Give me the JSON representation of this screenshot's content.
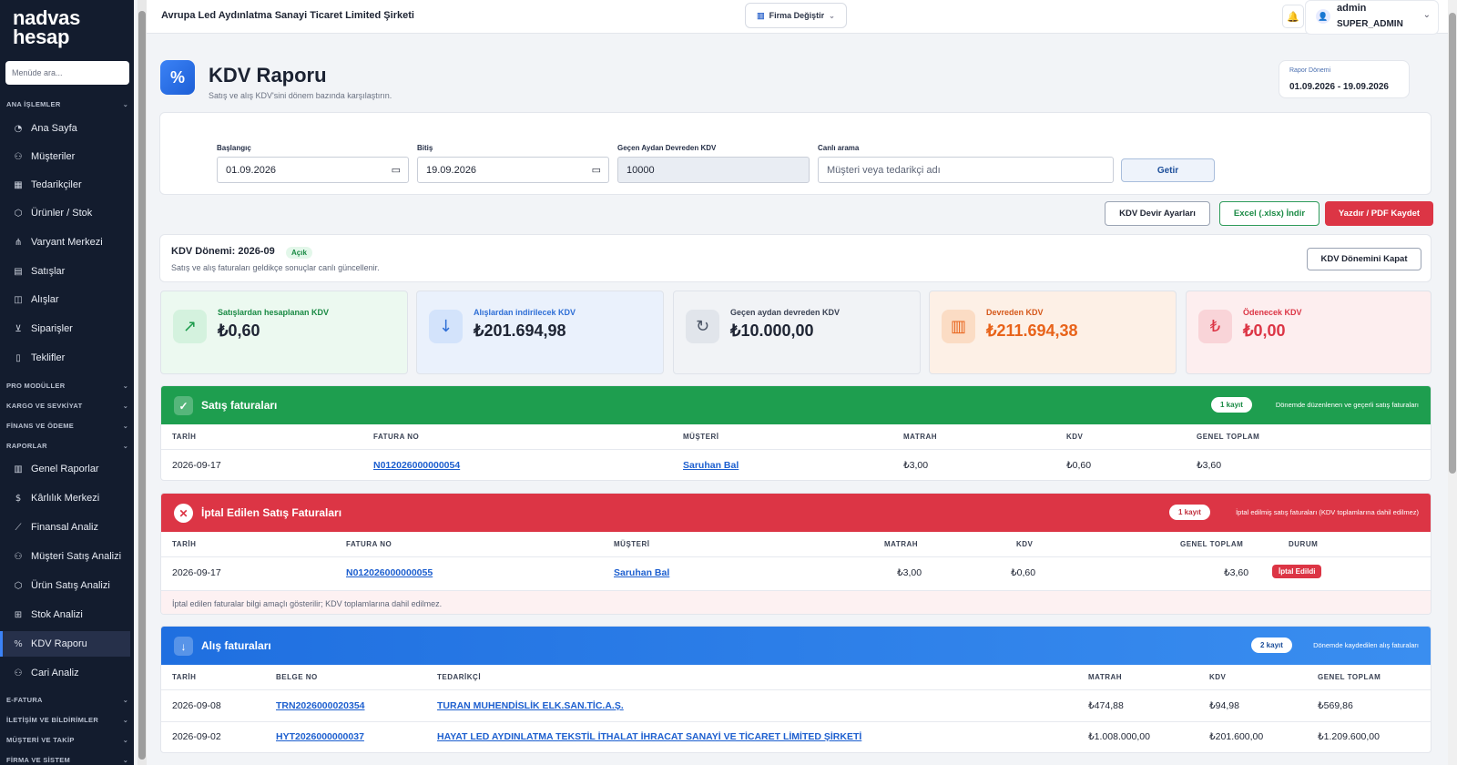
{
  "sidebar": {
    "logo_line1": "nadvas",
    "logo_line2": "hesap",
    "search_placeholder": "Menüde ara...",
    "groups": {
      "ana": "ANA İŞLEMLER",
      "pro": "PRO MODÜLLER",
      "kargo": "KARGO VE SEVKİYAT",
      "finans": "FİNANS VE ÖDEME",
      "raporlar": "RAPORLAR",
      "efatura": "E-FATURA",
      "iletisim": "İLETİŞİM VE BİLDİRİMLER",
      "musteri": "MÜŞTERİ VE TAKİP",
      "firma": "FİRMA VE SİSTEM"
    },
    "items": {
      "ana_sayfa": "Ana Sayfa",
      "musteriler": "Müşteriler",
      "tedarikciler": "Tedarikçiler",
      "urunler": "Ürünler / Stok",
      "varyant": "Varyant Merkezi",
      "satislar": "Satışlar",
      "alislar": "Alışlar",
      "siparisler": "Siparişler",
      "teklifler": "Teklifler",
      "genel_raporlar": "Genel Raporlar",
      "karlilik": "Kârlılık Merkezi",
      "finansal": "Finansal Analiz",
      "musteri_satis": "Müşteri Satış Analizi",
      "urun_satis": "Ürün Satış Analizi",
      "stok_analizi": "Stok Analizi",
      "kdv_raporu": "KDV Raporu",
      "cari_analiz": "Cari Analiz"
    }
  },
  "topbar": {
    "company": "Avrupa Led Aydınlatma Sanayi Ticaret Limited Şirketi",
    "firm_button": "Firma Değiştir",
    "user_name": "admin",
    "user_role": "SUPER_ADMIN"
  },
  "header": {
    "title": "KDV Raporu",
    "subtitle": "Satış ve alış KDV'sini dönem bazında karşılaştırın.",
    "period_label": "Rapor Dönemi",
    "period_value": "01.09.2026 - 19.09.2026"
  },
  "filter": {
    "start_label": "Başlangıç",
    "start_value": "01.09.2026",
    "end_label": "Bitiş",
    "end_value": "19.09.2026",
    "carry_label": "Geçen Aydan Devreden KDV",
    "carry_value": "10000",
    "search_label": "Canlı arama",
    "search_placeholder": "Müşteri veya tedarikçi adı",
    "submit": "Getir"
  },
  "actions": {
    "settings": "KDV Devir Ayarları",
    "excel": "Excel (.xlsx) İndir",
    "print": "Yazdır / PDF Kaydet"
  },
  "kdv_period": {
    "title": "KDV Dönemi: 2026-09",
    "status": "Açık",
    "note": "Satış ve alış faturaları geldikçe sonuçlar canlı güncellenir.",
    "close_button": "KDV Dönemini Kapat"
  },
  "stats": [
    {
      "label": "Satışlardan hesaplanan KDV",
      "value": "₺0,60",
      "icon": "trend-up-icon",
      "color": "#1a9a4a"
    },
    {
      "label": "Alışlardan indirilecek KDV",
      "value": "₺201.694,98",
      "icon": "arrow-down-icon",
      "color": "#2f6fd6"
    },
    {
      "label": "Geçen aydan devreden KDV",
      "value": "₺10.000,00",
      "icon": "refresh-icon",
      "color": "#4b5566"
    },
    {
      "label": "Devreden KDV",
      "value": "₺211.694,38",
      "icon": "barcode-icon",
      "color": "#e8631a"
    },
    {
      "label": "Ödenecek KDV",
      "value": "₺0,00",
      "icon": "lira-icon",
      "color": "#dc3545"
    }
  ],
  "sales": {
    "title": "Satış faturaları",
    "count": "1 kayıt",
    "note": "Dönemde düzenlenen ve geçerli satış faturaları",
    "headers": [
      "TARİH",
      "FATURA NO",
      "MÜŞTERİ",
      "MATRAH",
      "KDV",
      "GENEL TOPLAM"
    ],
    "rows": [
      {
        "date": "2026-09-17",
        "no": "N012026000000054",
        "party": "Saruhan Bal",
        "base": "₺3,00",
        "kdv": "₺0,60",
        "total": "₺3,60"
      }
    ]
  },
  "cancelled": {
    "title": "İptal Edilen Satış Faturaları",
    "count": "1 kayıt",
    "note": "İptal edilmiş satış faturaları (KDV toplamlarına dahil edilmez)",
    "headers": [
      "TARİH",
      "FATURA NO",
      "MÜŞTERİ",
      "MATRAH",
      "KDV",
      "GENEL TOPLAM",
      "DURUM"
    ],
    "rows": [
      {
        "date": "2026-09-17",
        "no": "N012026000000055",
        "party": "Saruhan Bal",
        "base": "₺3,00",
        "kdv": "₺0,60",
        "total": "₺3,60",
        "status": "İptal Edildi"
      }
    ],
    "footer": "İptal edilen faturalar bilgi amaçlı gösterilir; KDV toplamlarına dahil edilmez."
  },
  "purchases": {
    "title": "Alış faturaları",
    "count": "2 kayıt",
    "note": "Dönemde kaydedilen alış faturaları",
    "headers": [
      "TARİH",
      "BELGE NO",
      "TEDARİKÇİ",
      "MATRAH",
      "KDV",
      "GENEL TOPLAM"
    ],
    "rows": [
      {
        "date": "2026-09-08",
        "no": "TRN2026000020354",
        "party": "TURAN MUHENDİSLİK ELK.SAN.TİC.A.Ş.",
        "base": "₺474,88",
        "kdv": "₺94,98",
        "total": "₺569,86"
      },
      {
        "date": "2026-09-02",
        "no": "HYT2026000000037",
        "party": "HAYAT LED AYDINLATMA TEKSTİL İTHALAT İHRACAT SANAYİ VE TİCARET LİMİTED ŞİRKETİ",
        "base": "₺1.008.000,00",
        "kdv": "₺201.600,00",
        "total": "₺1.209.600,00"
      }
    ]
  }
}
